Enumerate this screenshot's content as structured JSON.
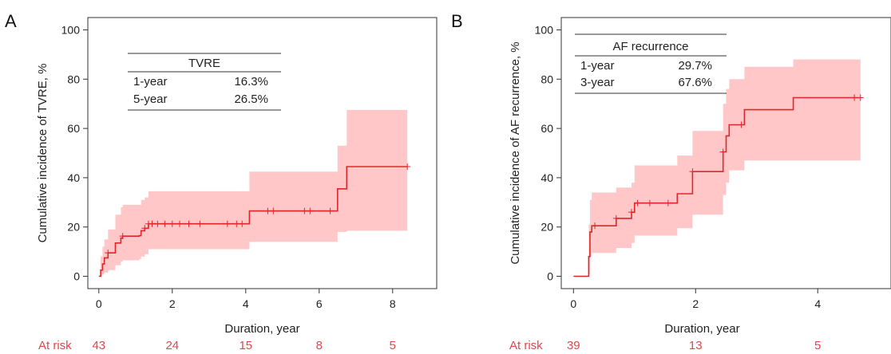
{
  "chart_data": [
    {
      "type": "line",
      "panel": "A",
      "ylabel": "Cumulative incidence of TVRE, %",
      "xlabel": "Duration, year",
      "xlim": [
        -0.3,
        9.2
      ],
      "ylim": [
        -5,
        105
      ],
      "xticks": [
        0,
        2,
        4,
        6,
        8
      ],
      "yticks": [
        0,
        20,
        40,
        60,
        80,
        100
      ],
      "colors": {
        "line": "#e0262b",
        "ci": "#ffc7c7"
      },
      "series": [
        {
          "x": [
            0,
            0.05,
            0.1,
            0.15,
            0.25,
            0.45,
            0.6,
            0.65,
            1.1,
            1.15,
            1.25,
            1.35,
            4.1,
            6.5,
            6.75,
            8.4
          ],
          "y": [
            0,
            2.5,
            5,
            7.5,
            9.5,
            13.5,
            15.5,
            16.3,
            16.5,
            18.5,
            19.5,
            21.3,
            26.5,
            35.5,
            44.5,
            44.5
          ],
          "ci_lower": [
            0,
            0.3,
            0.8,
            1.5,
            2.5,
            4.5,
            6,
            6.5,
            7,
            8,
            9,
            11,
            14,
            18,
            18.5,
            18.5
          ],
          "ci_upper": [
            0,
            8,
            12,
            15,
            19,
            25,
            28,
            29,
            29,
            31,
            32,
            34.5,
            42.5,
            53,
            67.5,
            67.5
          ],
          "censored_x": [
            0.25,
            0.65,
            1.25,
            1.35,
            1.45,
            1.6,
            1.8,
            2.0,
            2.2,
            2.45,
            2.75,
            3.5,
            3.75,
            3.9,
            4.6,
            4.75,
            5.6,
            5.75,
            6.3,
            8.4
          ],
          "censored_y": [
            9.5,
            16.3,
            19.5,
            21.3,
            21.3,
            21.3,
            21.3,
            21.3,
            21.3,
            21.3,
            21.3,
            21.3,
            21.3,
            21.3,
            26.5,
            26.5,
            26.5,
            26.5,
            26.5,
            44.5
          ]
        }
      ],
      "table": {
        "title": "TVRE",
        "rows": [
          [
            "1-year",
            "16.3%"
          ],
          [
            "5-year",
            "26.5%"
          ]
        ]
      },
      "at_risk": {
        "label": "At risk",
        "x": [
          0,
          2,
          4,
          6,
          8
        ],
        "values": [
          "43",
          "24",
          "15",
          "8",
          "5"
        ]
      }
    },
    {
      "type": "line",
      "panel": "B",
      "ylabel": "Cumulative incidence of AF recurrence, %",
      "xlabel": "Duration, year",
      "xlim": [
        -0.2,
        5.2
      ],
      "ylim": [
        -5,
        105
      ],
      "xticks": [
        0,
        2,
        4
      ],
      "yticks": [
        0,
        20,
        40,
        60,
        80,
        100
      ],
      "colors": {
        "line": "#e0262b",
        "ci": "#ffc7c7"
      },
      "series": [
        {
          "x": [
            0,
            0.25,
            0.27,
            0.3,
            0.35,
            0.7,
            0.8,
            0.95,
            1.0,
            1.05,
            1.7,
            1.95,
            2.45,
            2.5,
            2.55,
            2.65,
            2.8,
            3.6,
            4.7
          ],
          "y": [
            0,
            8,
            18,
            20.5,
            20.5,
            23.5,
            23.5,
            26,
            29.7,
            29.7,
            33.5,
            42.5,
            50.5,
            57,
            61.5,
            61.5,
            67.6,
            72.5,
            72.5
          ],
          "ci_lower": [
            0,
            1,
            8,
            9.5,
            9.5,
            11.5,
            11.5,
            13.5,
            16.5,
            16.5,
            19.5,
            25,
            33,
            38,
            43,
            43,
            47,
            47,
            47
          ],
          "ci_upper": [
            0,
            21,
            31,
            34,
            34,
            36,
            36,
            38,
            45,
            45,
            49,
            59,
            70,
            76,
            80,
            80,
            85,
            88,
            88
          ],
          "censored_x": [
            0.35,
            0.7,
            0.95,
            1.05,
            1.25,
            1.55,
            1.95,
            2.45,
            2.75,
            4.6,
            4.7
          ],
          "censored_y": [
            20.5,
            23.5,
            26,
            29.7,
            29.7,
            29.7,
            42.5,
            50.5,
            61.5,
            72.5,
            72.5
          ]
        }
      ],
      "table": {
        "title": "AF recurrence",
        "rows": [
          [
            "1-year",
            "29.7%"
          ],
          [
            "3-year",
            "67.6%"
          ]
        ]
      },
      "at_risk": {
        "label": "At risk",
        "x": [
          0,
          2,
          4
        ],
        "values": [
          "39",
          "13",
          "5"
        ]
      }
    }
  ]
}
